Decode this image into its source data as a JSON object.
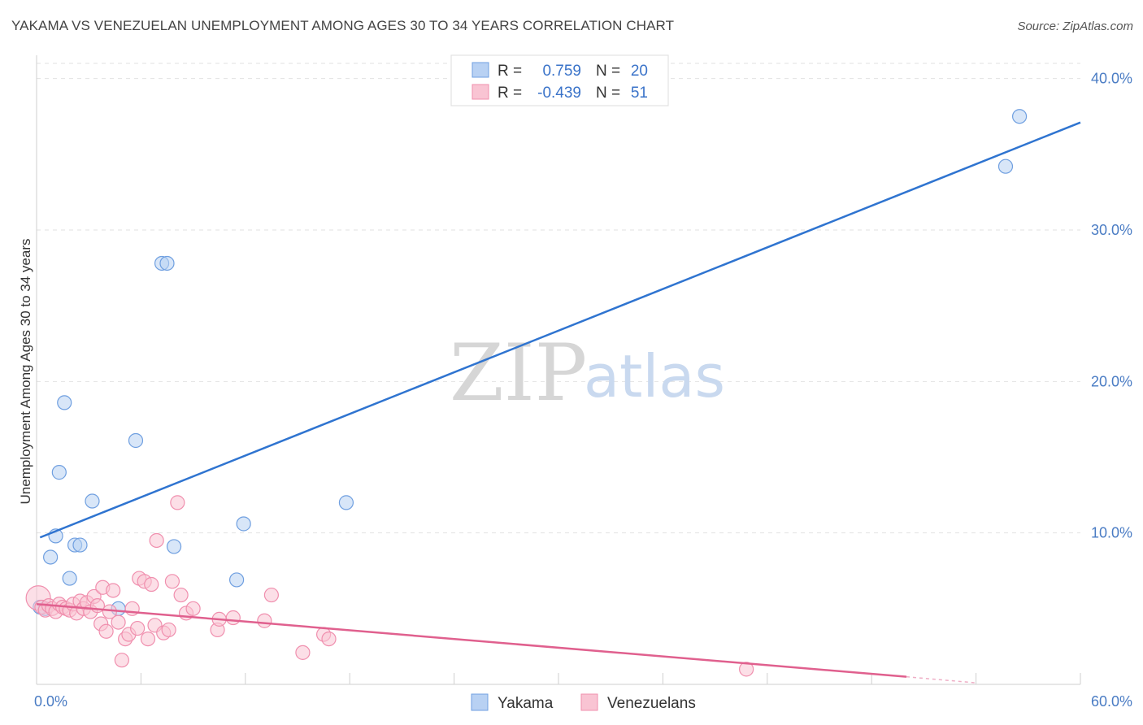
{
  "chart_data": {
    "type": "scatter",
    "title": "YAKAMA VS VENEZUELAN UNEMPLOYMENT AMONG AGES 30 TO 34 YEARS CORRELATION CHART",
    "source": "Source: ZipAtlas.com",
    "ylabel": "Unemployment Among Ages 30 to 34 years",
    "xlim": [
      0,
      60
    ],
    "ylim": [
      0,
      41
    ],
    "x_tick_labels": [
      "0.0%",
      "60.0%"
    ],
    "y_ticks": [
      {
        "value": 10,
        "label": "10.0%"
      },
      {
        "value": 20,
        "label": "20.0%"
      },
      {
        "value": 30,
        "label": "30.0%"
      },
      {
        "value": 40,
        "label": "40.0%"
      }
    ],
    "legend": [
      {
        "r_label": "R =",
        "r_value": "0.759",
        "n_label": "N =",
        "n_value": "20",
        "color": "#6fa0e0"
      },
      {
        "r_label": "R =",
        "r_value": "-0.439",
        "n_label": "N =",
        "n_value": "51",
        "color": "#f2a0b8"
      }
    ],
    "watermark": {
      "zip": "ZIP",
      "atlas": "atlas"
    },
    "series": [
      {
        "name": "Yakama",
        "fill": "#b8d1f3",
        "stroke": "#6f9fe0",
        "line_color": "#2f74d0",
        "trend": {
          "x": [
            0.2,
            60
          ],
          "y": [
            9.7,
            37.1
          ]
        },
        "points": [
          [
            0.2,
            5.1
          ],
          [
            0.5,
            5.0
          ],
          [
            0.8,
            8.4
          ],
          [
            1.1,
            9.8
          ],
          [
            1.3,
            14.0
          ],
          [
            1.6,
            18.6
          ],
          [
            1.9,
            7.0
          ],
          [
            2.2,
            9.2
          ],
          [
            2.5,
            9.2
          ],
          [
            3.2,
            12.1
          ],
          [
            4.7,
            5.0
          ],
          [
            5.7,
            16.1
          ],
          [
            7.2,
            27.8
          ],
          [
            7.5,
            27.8
          ],
          [
            7.9,
            9.1
          ],
          [
            11.5,
            6.9
          ],
          [
            11.9,
            10.6
          ],
          [
            17.8,
            12.0
          ],
          [
            55.7,
            34.2
          ],
          [
            56.5,
            37.5
          ]
        ]
      },
      {
        "name": "Venezuelans",
        "fill": "#f9c4d3",
        "stroke": "#f08fae",
        "line_color": "#e0608e",
        "trend": {
          "x": [
            0,
            50
          ],
          "y": [
            5.3,
            0.5
          ]
        },
        "trend_dashed": {
          "x": [
            50,
            54
          ],
          "y": [
            0.5,
            0.1
          ]
        },
        "points": [
          [
            0.1,
            5.7
          ],
          [
            0.3,
            5.1
          ],
          [
            0.5,
            4.9
          ],
          [
            0.7,
            5.2
          ],
          [
            0.9,
            5.0
          ],
          [
            1.1,
            4.8
          ],
          [
            1.3,
            5.3
          ],
          [
            1.5,
            5.1
          ],
          [
            1.7,
            5.0
          ],
          [
            1.9,
            4.9
          ],
          [
            2.1,
            5.3
          ],
          [
            2.3,
            4.7
          ],
          [
            2.5,
            5.5
          ],
          [
            2.7,
            5.0
          ],
          [
            2.9,
            5.4
          ],
          [
            3.1,
            4.8
          ],
          [
            3.3,
            5.8
          ],
          [
            3.5,
            5.2
          ],
          [
            3.7,
            4.0
          ],
          [
            3.8,
            6.4
          ],
          [
            4.0,
            3.5
          ],
          [
            4.2,
            4.8
          ],
          [
            4.4,
            6.2
          ],
          [
            4.7,
            4.1
          ],
          [
            4.9,
            1.6
          ],
          [
            5.1,
            3.0
          ],
          [
            5.3,
            3.3
          ],
          [
            5.5,
            5.0
          ],
          [
            5.8,
            3.7
          ],
          [
            5.9,
            7.0
          ],
          [
            6.2,
            6.8
          ],
          [
            6.4,
            3.0
          ],
          [
            6.6,
            6.6
          ],
          [
            6.8,
            3.9
          ],
          [
            6.9,
            9.5
          ],
          [
            7.3,
            3.4
          ],
          [
            7.6,
            3.6
          ],
          [
            7.8,
            6.8
          ],
          [
            8.1,
            12.0
          ],
          [
            8.3,
            5.9
          ],
          [
            8.6,
            4.7
          ],
          [
            9.0,
            5.0
          ],
          [
            10.4,
            3.6
          ],
          [
            10.5,
            4.3
          ],
          [
            11.3,
            4.4
          ],
          [
            13.1,
            4.2
          ],
          [
            13.5,
            5.9
          ],
          [
            15.3,
            2.1
          ],
          [
            16.5,
            3.3
          ],
          [
            16.8,
            3.0
          ],
          [
            40.8,
            1.0
          ]
        ]
      }
    ],
    "bottom_legend": [
      "Yakama",
      "Venezuelans"
    ]
  }
}
